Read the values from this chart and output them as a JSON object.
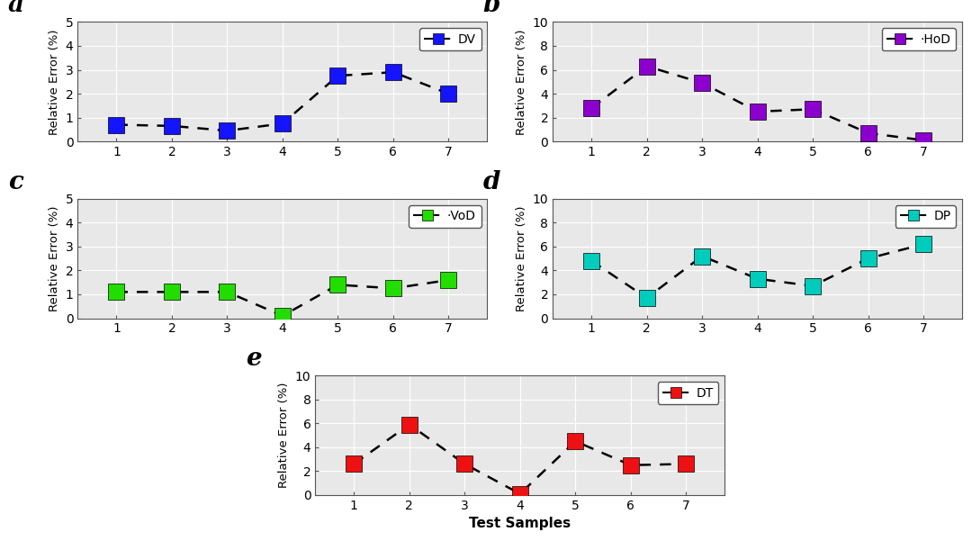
{
  "x": [
    1,
    2,
    3,
    4,
    5,
    6,
    7
  ],
  "panels": [
    {
      "label": "a",
      "legend": "DV",
      "color": "#1414FF",
      "values": [
        0.7,
        0.65,
        0.45,
        0.75,
        2.75,
        2.9,
        2.0
      ],
      "ylim": [
        0,
        5
      ],
      "yticks": [
        0,
        1,
        2,
        3,
        4,
        5
      ]
    },
    {
      "label": "b",
      "legend": "·HoD",
      "color": "#8B00CC",
      "values": [
        2.8,
        6.3,
        4.9,
        2.5,
        2.7,
        0.7,
        0.1
      ],
      "ylim": [
        0,
        10
      ],
      "yticks": [
        0,
        2,
        4,
        6,
        8,
        10
      ]
    },
    {
      "label": "c",
      "legend": "·VoD",
      "color": "#22DD00",
      "values": [
        1.1,
        1.1,
        1.1,
        0.1,
        1.4,
        1.25,
        1.6
      ],
      "ylim": [
        0,
        5
      ],
      "yticks": [
        0,
        1,
        2,
        3,
        4,
        5
      ]
    },
    {
      "label": "d",
      "legend": "DP",
      "color": "#00CCBB",
      "values": [
        4.8,
        1.7,
        5.2,
        3.3,
        2.7,
        5.0,
        6.2
      ],
      "ylim": [
        0,
        10
      ],
      "yticks": [
        0,
        2,
        4,
        6,
        8,
        10
      ]
    },
    {
      "label": "e",
      "legend": "DT",
      "color": "#EE1111",
      "values": [
        2.6,
        5.9,
        2.6,
        0.1,
        4.5,
        2.5,
        2.6
      ],
      "ylim": [
        0,
        10
      ],
      "yticks": [
        0,
        2,
        4,
        6,
        8,
        10
      ]
    }
  ],
  "xlabel": "Test Samples",
  "ylabel": "Relative Error (%)",
  "fig_facecolor": "#FFFFFF",
  "ax_facecolor": "#E8E8E8",
  "grid_color": "#FFFFFF",
  "marker_size": 13,
  "line_width": 1.8,
  "dash_pattern": [
    5,
    4
  ]
}
